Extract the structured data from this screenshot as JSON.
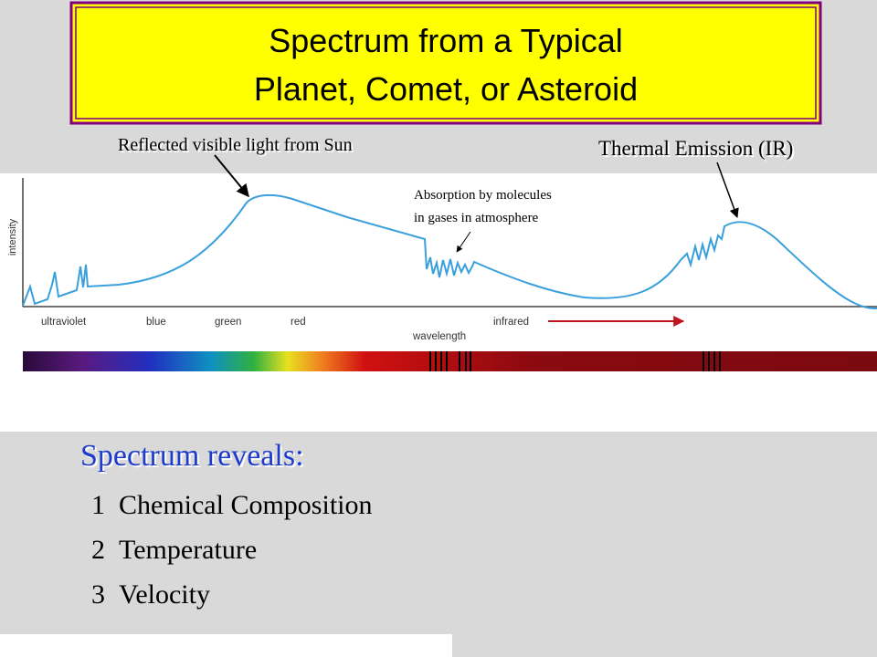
{
  "header": {
    "title_lines": [
      "Spectrum from a Typical",
      "Planet, Comet, or Asteroid"
    ]
  },
  "annotations": {
    "reflected": "Reflected visible light from Sun",
    "thermal": "Thermal Emission (IR)",
    "absorption_lines": [
      "Absorption by molecules",
      "in gases in atmosphere"
    ]
  },
  "figure": {
    "y_axis_label": "intensity",
    "x_axis_label": "wavelength",
    "bands": [
      "ultraviolet",
      "blue",
      "green",
      "red",
      "infrared"
    ]
  },
  "list": {
    "heading": "Spectrum reveals:",
    "items": [
      {
        "number": 1,
        "text": "Chemical Composition"
      },
      {
        "number": 2,
        "text": "Temperature"
      },
      {
        "number": 3,
        "text": "Velocity"
      }
    ]
  }
}
